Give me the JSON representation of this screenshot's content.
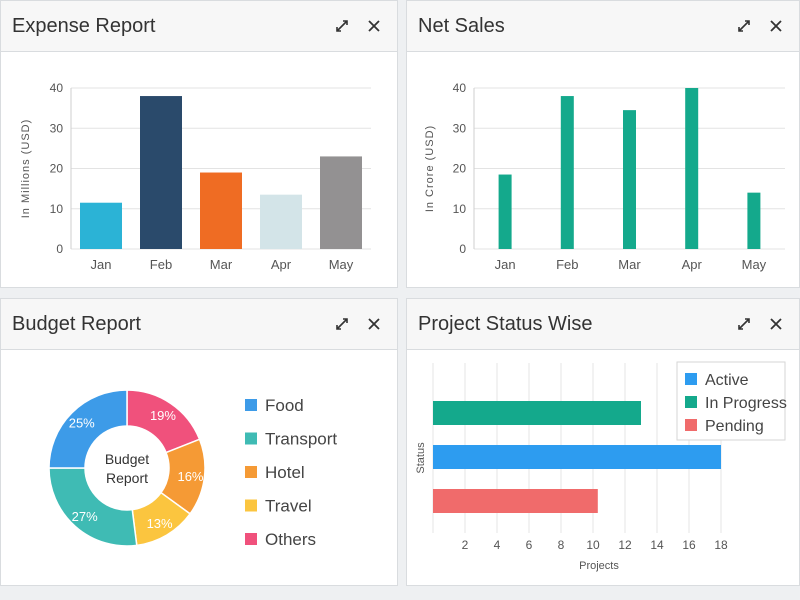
{
  "panels": {
    "expense": {
      "title": "Expense Report",
      "chart_data": {
        "type": "bar",
        "categories": [
          "Jan",
          "Feb",
          "Mar",
          "Apr",
          "May"
        ],
        "values": [
          11.5,
          38,
          19,
          13.5,
          23
        ],
        "colors": [
          "#2bb3d6",
          "#2a4a6b",
          "#ef6c23",
          "#d3e4e8",
          "#939192"
        ],
        "ylabel": "In Millions (USD)",
        "xlabel": "",
        "ylim": [
          0,
          40
        ],
        "yticks": [
          0,
          10,
          20,
          30,
          40
        ]
      }
    },
    "netsales": {
      "title": "Net Sales",
      "chart_data": {
        "type": "bar",
        "categories": [
          "Jan",
          "Feb",
          "Mar",
          "Apr",
          "May"
        ],
        "values": [
          18.5,
          38,
          34.5,
          40,
          14
        ],
        "color": "#14a98c",
        "ylabel": "In Crore (USD)",
        "xlabel": "",
        "ylim": [
          0,
          40
        ],
        "yticks": [
          0,
          10,
          20,
          30,
          40
        ]
      }
    },
    "budget": {
      "title": "Budget Report",
      "center_label_line1": "Budget",
      "center_label_line2": "Report",
      "chart_data": {
        "type": "pie",
        "donut": true,
        "labels": [
          "Food",
          "Transport",
          "Hotel",
          "Travel",
          "Others"
        ],
        "values": [
          25,
          27,
          16,
          13,
          19
        ],
        "display": [
          "25%",
          "27%",
          "16%",
          "13%",
          "19%"
        ],
        "colors": [
          "#3d9be8",
          "#3fbbb4",
          "#f59a35",
          "#fbc53f",
          "#f0517c"
        ]
      }
    },
    "project": {
      "title": "Project Status Wise",
      "chart_data": {
        "type": "bar",
        "orientation": "horizontal",
        "series": [
          {
            "name": "Active",
            "value": 18,
            "color": "#2d9cf0"
          },
          {
            "name": "In Progress",
            "value": 13,
            "color": "#14a98c"
          },
          {
            "name": "Pending",
            "value": 10.3,
            "color": "#f06b6b"
          }
        ],
        "bar_order_top_to_bottom": [
          "In Progress",
          "Active",
          "Pending"
        ],
        "xlabel": "Projects",
        "ylabel": "Status",
        "xlim": [
          0,
          20
        ],
        "xticks": [
          2,
          4,
          6,
          8,
          10,
          12,
          14,
          16,
          18
        ],
        "legend_position": "top-right"
      }
    }
  }
}
